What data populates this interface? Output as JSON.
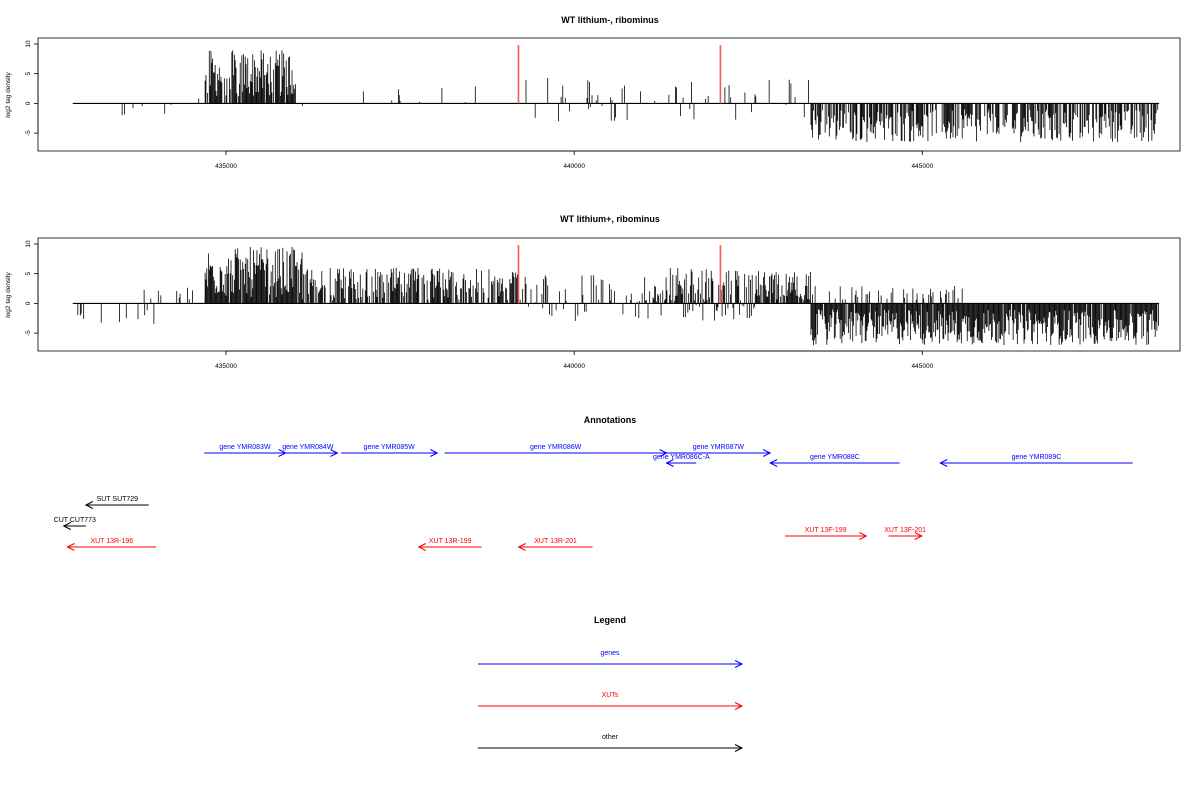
{
  "chart_data": [
    {
      "type": "bar",
      "title": "WT lithium-, ribominus",
      "ylabel": "log2 tag density",
      "xlim": [
        432300,
        448700
      ],
      "ylim": [
        -8,
        11
      ],
      "xticks": [
        435000,
        440000,
        445000
      ],
      "yticks": [
        -5,
        0,
        5,
        10
      ],
      "marker_lines": [
        439200,
        442100
      ],
      "marker_color": "#ff5555",
      "bar_color": "#000000",
      "segments": [
        {
          "from": 432800,
          "to": 434200,
          "dens": 0.03,
          "minV": -3,
          "maxV": 1
        },
        {
          "from": 434200,
          "to": 434700,
          "dens": 0.01,
          "minV": -1,
          "maxV": 2
        },
        {
          "from": 434700,
          "to": 436000,
          "dens": 0.85,
          "minV": 1,
          "maxV": 9
        },
        {
          "from": 436000,
          "to": 439200,
          "dens": 0.03,
          "minV": -1,
          "maxV": 3
        },
        {
          "from": 439200,
          "to": 443400,
          "dens": 0.13,
          "minV": -3,
          "maxV": 4.5
        },
        {
          "from": 443400,
          "to": 448400,
          "dens": 0.7,
          "minV": -6.5,
          "maxV": -1
        },
        {
          "from": 445200,
          "to": 445400,
          "dens": 0.02,
          "minV": 1,
          "maxV": 2
        }
      ]
    },
    {
      "type": "bar",
      "title": "WT lithium+, ribominus",
      "ylabel": "log2 tag density",
      "xlim": [
        432300,
        448700
      ],
      "ylim": [
        -8,
        11
      ],
      "xticks": [
        435000,
        440000,
        445000
      ],
      "yticks": [
        -5,
        0,
        5,
        10
      ],
      "marker_lines": [
        439200,
        442100
      ],
      "marker_color": "#ff5555",
      "bar_color": "#000000",
      "segments": [
        {
          "from": 432800,
          "to": 434000,
          "dens": 0.15,
          "minV": -3.5,
          "maxV": -0.5
        },
        {
          "from": 433800,
          "to": 434800,
          "dens": 0.12,
          "minV": 0.5,
          "maxV": 3
        },
        {
          "from": 434700,
          "to": 436100,
          "dens": 0.95,
          "minV": 1,
          "maxV": 9.5
        },
        {
          "from": 436100,
          "to": 439200,
          "dens": 0.75,
          "minV": 0.5,
          "maxV": 6
        },
        {
          "from": 439200,
          "to": 441200,
          "dens": 0.35,
          "minV": -3,
          "maxV": 5
        },
        {
          "from": 441200,
          "to": 442600,
          "dens": 0.8,
          "minV": -3,
          "maxV": 6
        },
        {
          "from": 442600,
          "to": 443400,
          "dens": 0.85,
          "minV": 0.5,
          "maxV": 5.5
        },
        {
          "from": 443400,
          "to": 445600,
          "dens": 0.25,
          "minV": 0.5,
          "maxV": 3
        },
        {
          "from": 443400,
          "to": 448400,
          "dens": 0.95,
          "minV": -7,
          "maxV": -1
        }
      ]
    }
  ],
  "annotations": {
    "title": "Annotations",
    "features": [
      {
        "label": "gene YMR083W",
        "start": 434700,
        "end": 436900,
        "dir": "right",
        "row": 0,
        "color": "#0000ff"
      },
      {
        "label": "gene YMR084W",
        "start": 436700,
        "end": 438300,
        "dir": "right",
        "row": 0,
        "color": "#0000ff"
      },
      {
        "label": "gene YMR085W",
        "start": 438400,
        "end": 441000,
        "dir": "right",
        "row": 0,
        "color": "#0000ff"
      },
      {
        "label": "gene YMR086W",
        "start": 441200,
        "end": 447200,
        "dir": "right",
        "row": 0,
        "color": "#0000ff"
      },
      {
        "label": "gene YMR087W",
        "start": 447200,
        "end": 450000,
        "dir": "right",
        "row": 0,
        "color": "#0000ff"
      },
      {
        "label": "gene YMR086C-A",
        "start": 447200,
        "end": 448000,
        "dir": "left",
        "row": 1,
        "color": "#0000ff"
      },
      {
        "label": "gene YMR088C",
        "start": 450000,
        "end": 453500,
        "dir": "left",
        "row": 1,
        "color": "#0000ff"
      },
      {
        "label": "gene YMR089C",
        "start": 454600,
        "end": 459800,
        "dir": "left",
        "row": 1,
        "color": "#0000ff"
      },
      {
        "label": "SUT SUT729",
        "start": 431500,
        "end": 433200,
        "dir": "left",
        "row": 2,
        "color": "#000000"
      },
      {
        "label": "CUT CUT773",
        "start": 430900,
        "end": 431500,
        "dir": "left",
        "row": 3,
        "color": "#000000"
      },
      {
        "label": "XUT 13R-196",
        "start": 431000,
        "end": 433400,
        "dir": "left",
        "row": 4,
        "color": "#ff0000"
      },
      {
        "label": "XUT 13R-199",
        "start": 440500,
        "end": 442200,
        "dir": "left",
        "row": 4,
        "color": "#ff0000"
      },
      {
        "label": "XUT 13R-201",
        "start": 443200,
        "end": 445200,
        "dir": "left",
        "row": 4,
        "color": "#ff0000"
      },
      {
        "label": "XUT 13F-199",
        "start": 450400,
        "end": 452600,
        "dir": "right",
        "row": 5,
        "color": "#ff0000"
      },
      {
        "label": "XUT 13F-201",
        "start": 453200,
        "end": 454100,
        "dir": "right",
        "row": 5,
        "color": "#ff0000"
      }
    ]
  },
  "legend": {
    "title": "Legend",
    "items": [
      {
        "label": "genes",
        "color": "#0000ff"
      },
      {
        "label": "XUTs",
        "color": "#ff0000"
      },
      {
        "label": "other",
        "color": "#000000"
      }
    ]
  }
}
